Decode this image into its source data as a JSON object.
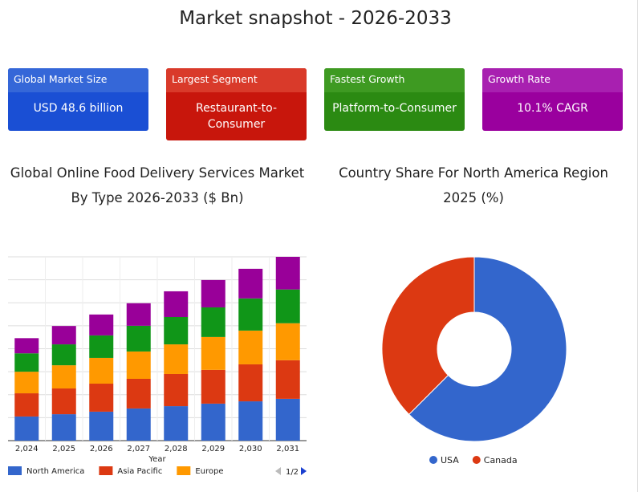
{
  "header": {
    "title": "Market snapshot - 2026-2033"
  },
  "cards": [
    {
      "label": "Global Market Size",
      "value": "USD 48.6 billion",
      "header_color": "#3567d8",
      "color": "#1a4fd4"
    },
    {
      "label": "Largest Segment",
      "value": "Restaurant-to-Consumer",
      "header_color": "#d93a2a",
      "color": "#c8160c"
    },
    {
      "label": "Fastest Growth",
      "value": "Platform-to-Consumer",
      "header_color": "#3e9a22",
      "color": "#2b8a12"
    },
    {
      "label": "Growth Rate",
      "value": "10.1% CAGR",
      "header_color": "#a820b0",
      "color": "#9a009e"
    }
  ],
  "chart_data": [
    {
      "type": "stacked_bar",
      "title": "Global Online Food Delivery Services Market By Type 2026-2033 ($ Bn)",
      "x_label": "Year",
      "categories": [
        "2,024",
        "2,025",
        "2,026",
        "2,027",
        "2,028",
        "2,029",
        "2,030",
        "2,031"
      ],
      "series": [
        {
          "name": "North America",
          "color": "#3366cc",
          "values": [
            10.5,
            11.5,
            12.6,
            14,
            15,
            16.1,
            17.1,
            18.2
          ]
        },
        {
          "name": "Asia Pacific",
          "color": "#dc3912",
          "values": [
            10.1,
            11.2,
            12.2,
            12.9,
            14,
            14.7,
            16.1,
            16.8
          ]
        },
        {
          "name": "Europe",
          "color": "#ff9900",
          "values": [
            9.4,
            10.1,
            11.2,
            11.9,
            12.9,
            14.3,
            14.7,
            16.1
          ]
        },
        {
          "color": "#109618",
          "values": [
            8,
            9.1,
            9.8,
            11.2,
            11.9,
            12.9,
            14,
            14.7
          ]
        },
        {
          "color": "#990099",
          "values": [
            6.6,
            8,
            9.1,
            9.8,
            11.2,
            11.9,
            12.9,
            14.2
          ]
        }
      ],
      "ylim": [
        0,
        80
      ],
      "yticks": [
        0,
        10,
        20,
        30,
        40,
        50,
        60,
        70,
        80
      ],
      "ytick_labels": false,
      "grid": true,
      "legend": "bottom",
      "legend_page": "1/2"
    },
    {
      "type": "donut",
      "title": "Country Share For North America Region 2025 (%)",
      "categories": [
        "USA",
        "Canada"
      ],
      "values": [
        62.5,
        37.5
      ],
      "colors": [
        "#3366cc",
        "#dc3912"
      ],
      "legend": "bottom"
    }
  ]
}
